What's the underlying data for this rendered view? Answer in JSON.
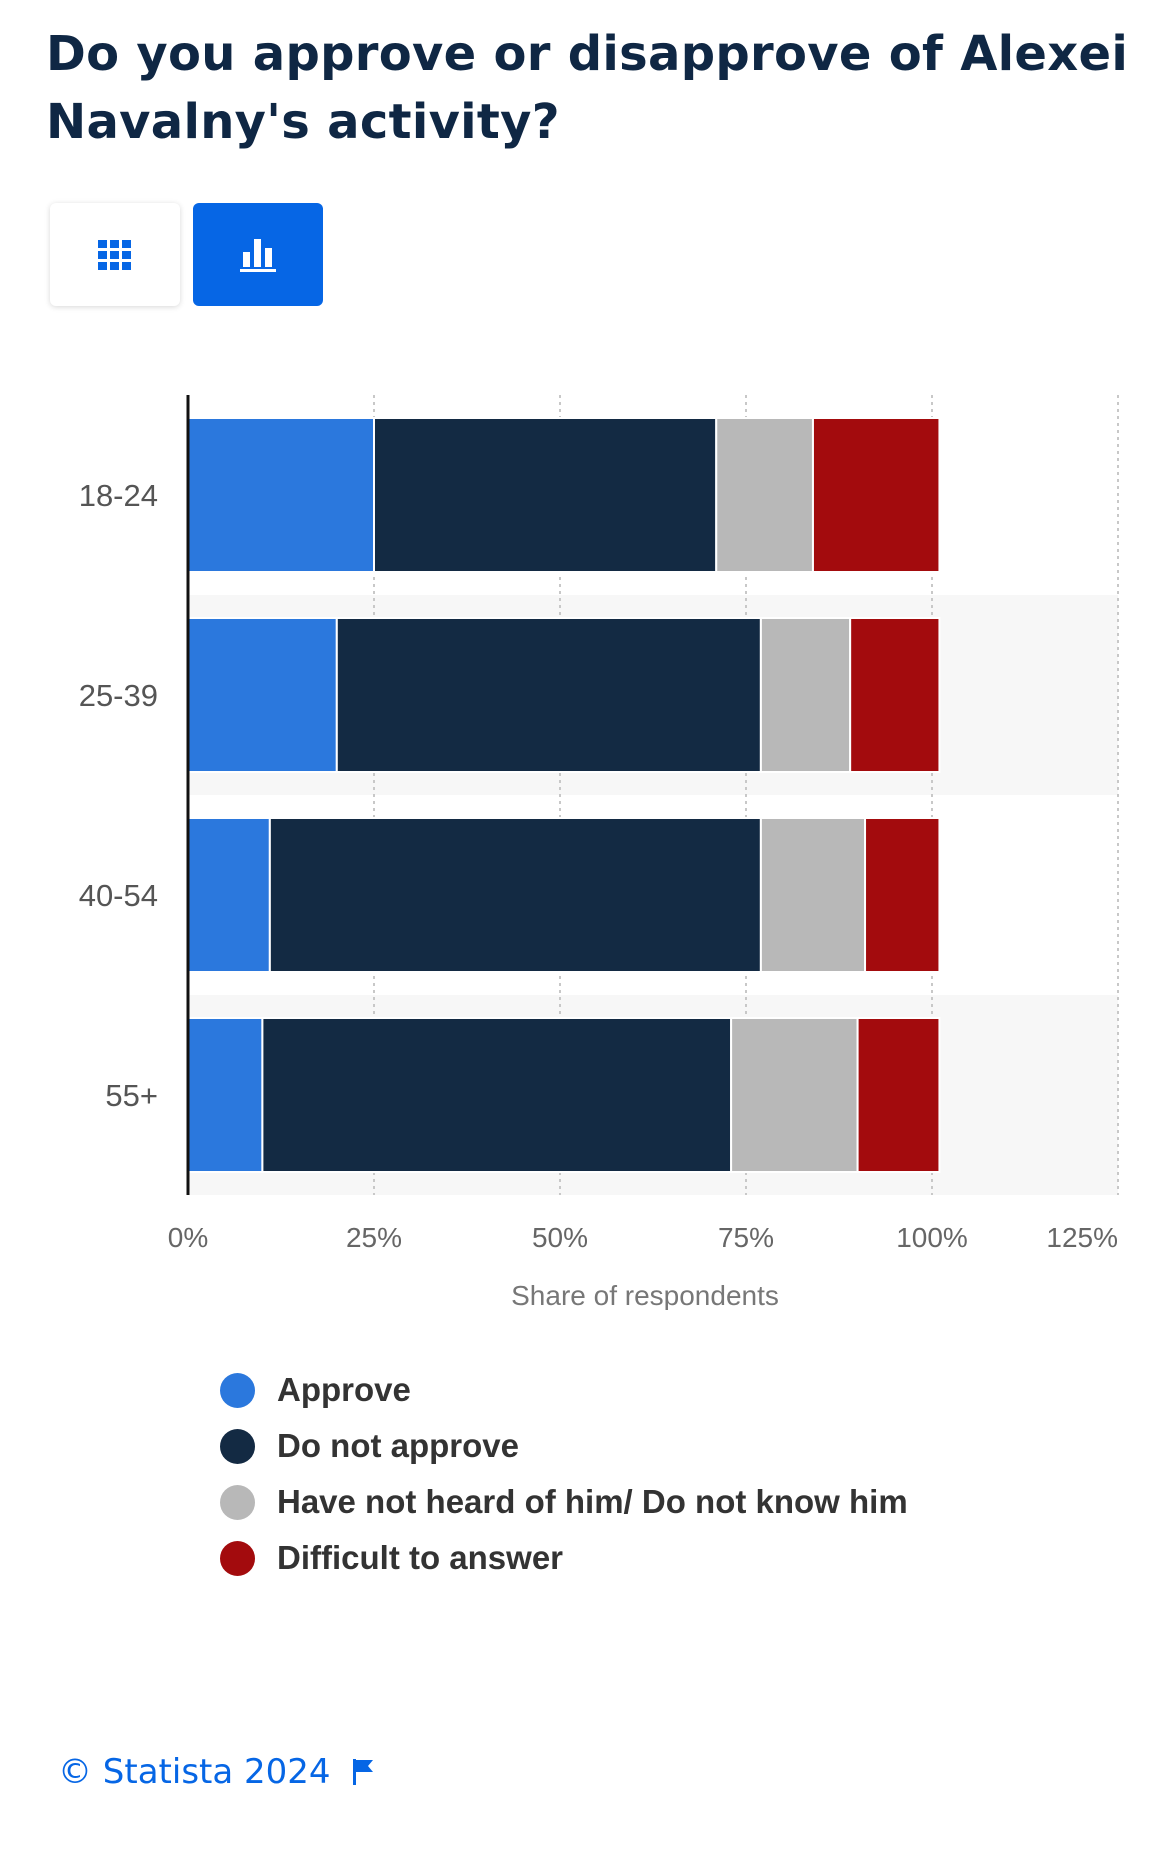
{
  "title": "Do you approve or disapprove of Alexei Navalny's activity?",
  "view_toggle": {
    "table_icon": "grid-icon",
    "chart_icon": "bar-chart-icon",
    "active": "chart"
  },
  "chart_data": {
    "type": "bar",
    "orientation": "horizontal",
    "stacked": true,
    "categories": [
      "18-24",
      "25-39",
      "40-54",
      "55+"
    ],
    "series": [
      {
        "name": "Approve",
        "color": "#2b78dd",
        "values": [
          25,
          20,
          11,
          10
        ]
      },
      {
        "name": "Do not approve",
        "color": "#132a43",
        "values": [
          46,
          57,
          66,
          63
        ]
      },
      {
        "name": "Have not heard of him/ Do not know him",
        "color": "#b8b8b8",
        "values": [
          13,
          12,
          14,
          17
        ]
      },
      {
        "name": "Difficult to answer",
        "color": "#a30b0d",
        "values": [
          17,
          12,
          10,
          11
        ]
      }
    ],
    "xlabel": "Share of respondents",
    "ylabel": "",
    "xlim": [
      0,
      125
    ],
    "xticks": [
      "0%",
      "25%",
      "50%",
      "75%",
      "100%",
      "125%"
    ],
    "grid": true,
    "legend_position": "bottom"
  },
  "footer": {
    "copyright": "© Statista 2024",
    "flag_icon": "flag-icon"
  }
}
